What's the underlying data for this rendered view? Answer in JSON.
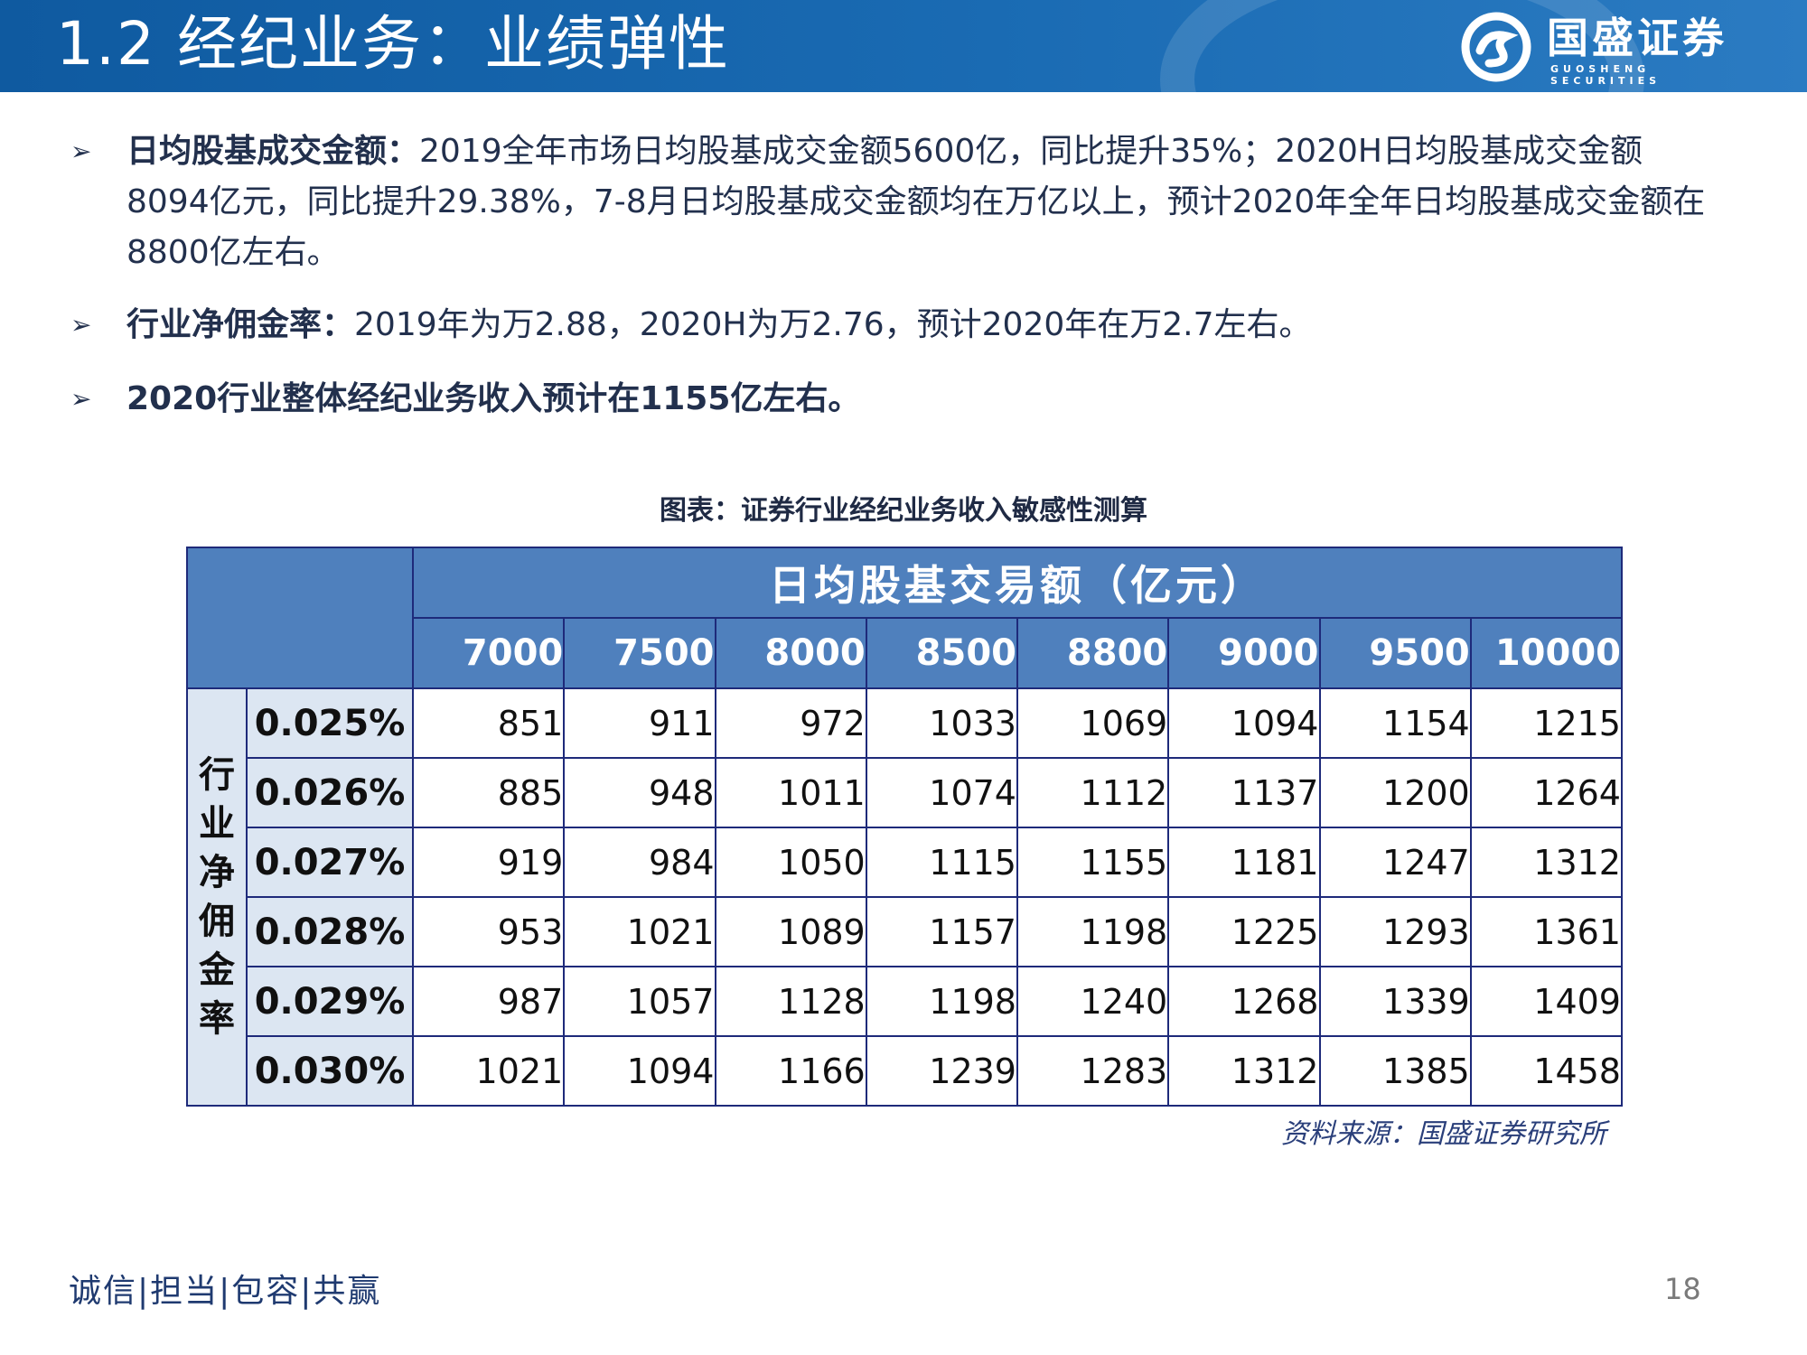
{
  "header": {
    "title": "1.2 经纪业务：业绩弹性",
    "logo_cn": "国盛证券",
    "logo_en": "GUOSHENG SECURITIES"
  },
  "bullets": [
    {
      "label": "日均股基成交金额：",
      "text": "2019全年市场日均股基成交金额5600亿，同比提升35%；2020H日均股基成交金额8094亿元，同比提升29.38%，7-8月日均股基成交金额均在万亿以上，预计2020年全年日均股基成交金额在8800亿左右。"
    },
    {
      "label": "行业净佣金率：",
      "text": "2019年为万2.88，2020H为万2.76，预计2020年在万2.7左右。"
    },
    {
      "label": "",
      "text": "2020行业整体经纪业务收入预计在1155亿左右。"
    }
  ],
  "chart_caption": "图表：证券行业经纪业务收入敏感性测算",
  "table": {
    "col_group_title": "日均股基交易额（亿元）",
    "row_group_title": "行业净佣金率",
    "columns": [
      "7000",
      "7500",
      "8000",
      "8500",
      "8800",
      "9000",
      "9500",
      "10000"
    ],
    "rows": [
      {
        "label": "0.025%",
        "cells": [
          "851",
          "911",
          "972",
          "1033",
          "1069",
          "1094",
          "1154",
          "1215"
        ]
      },
      {
        "label": "0.026%",
        "cells": [
          "885",
          "948",
          "1011",
          "1074",
          "1112",
          "1137",
          "1200",
          "1264"
        ]
      },
      {
        "label": "0.027%",
        "cells": [
          "919",
          "984",
          "1050",
          "1115",
          "1155",
          "1181",
          "1247",
          "1312"
        ]
      },
      {
        "label": "0.028%",
        "cells": [
          "953",
          "1021",
          "1089",
          "1157",
          "1198",
          "1225",
          "1293",
          "1361"
        ]
      },
      {
        "label": "0.029%",
        "cells": [
          "987",
          "1057",
          "1128",
          "1198",
          "1240",
          "1268",
          "1339",
          "1409"
        ]
      },
      {
        "label": "0.030%",
        "cells": [
          "1021",
          "1094",
          "1166",
          "1239",
          "1283",
          "1312",
          "1385",
          "1458"
        ]
      }
    ]
  },
  "source": "资料来源：国盛证券研究所",
  "footer": {
    "slogan": "诚信|担当|包容|共赢",
    "page_number": "18"
  },
  "colors": {
    "header_bg": "#1a6bb3",
    "table_header_bg": "#4f80bd",
    "table_label_bg": "#dce6f2"
  }
}
